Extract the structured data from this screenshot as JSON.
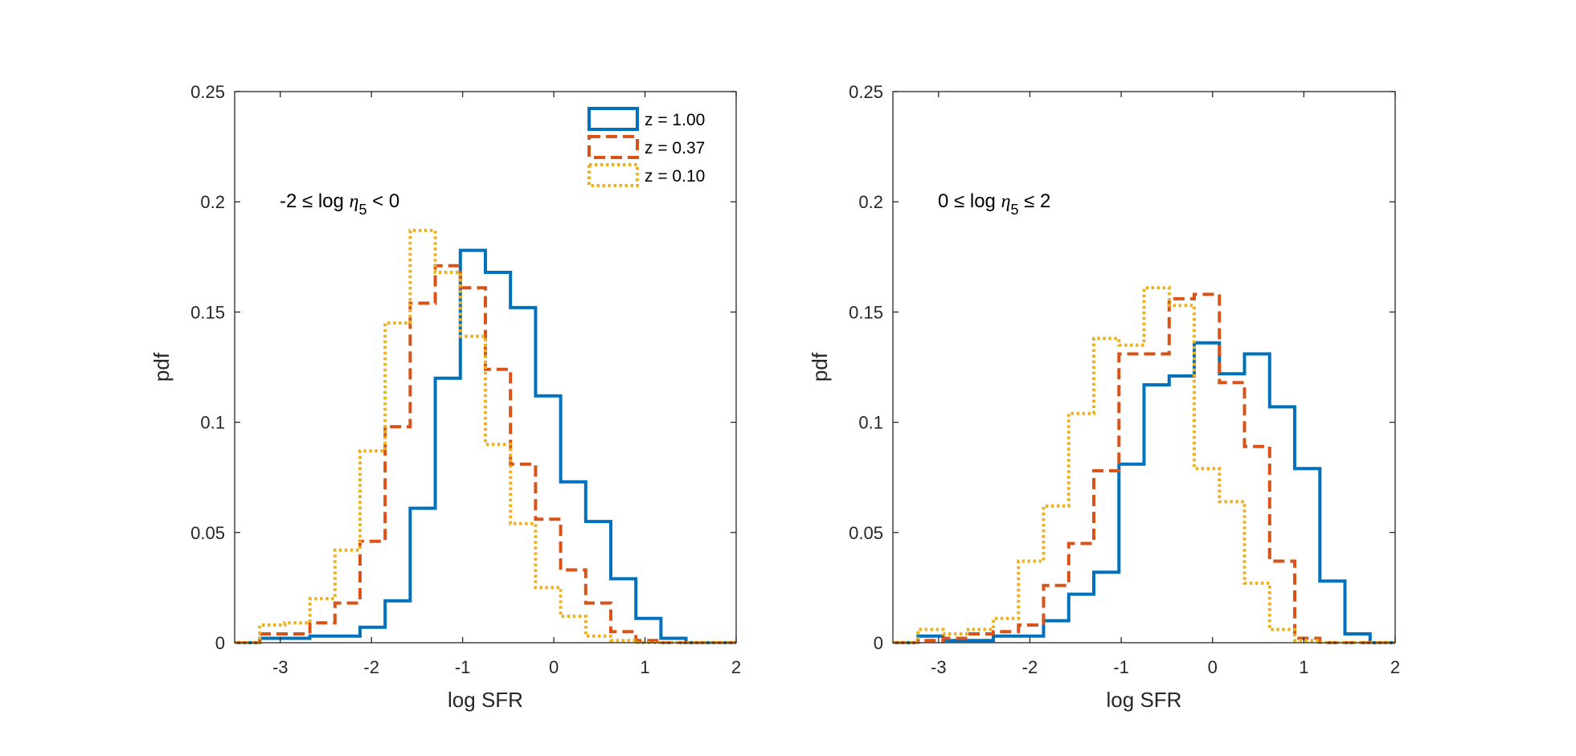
{
  "chart_data": [
    {
      "type": "histogram",
      "xlabel": "log SFR",
      "ylabel": "pdf",
      "xlim": [
        -3.5,
        2
      ],
      "ylim": [
        0,
        0.25
      ],
      "xticks": [
        -3,
        -2,
        -1,
        0,
        1,
        2
      ],
      "yticks": [
        0,
        0.05,
        0.1,
        0.15,
        0.2,
        0.25
      ],
      "xtick_labels": [
        "-3",
        "-2",
        "-1",
        "0",
        "1",
        "2"
      ],
      "ytick_labels": [
        "0",
        "0.05",
        "0.1",
        "0.15",
        "0.2",
        "0.25"
      ],
      "annotation": {
        "text": "-2 ≤ log ",
        "symbol": "η",
        "subscript": "5",
        "suffix": " < 0"
      },
      "legend": {
        "position": "top-right"
      },
      "series": [
        {
          "name": "z = 1.00",
          "color": "#0072BD",
          "style": "solid",
          "bins": [
            -3.5,
            -3.225,
            -2.95,
            -2.675,
            -2.4,
            -2.125,
            -1.85,
            -1.575,
            -1.3,
            -1.025,
            -0.75,
            -0.475,
            -0.2,
            0.075,
            0.35,
            0.625,
            0.9,
            1.175,
            1.45,
            1.725,
            2.0
          ],
          "values": [
            0,
            0.002,
            0.002,
            0.003,
            0.003,
            0.007,
            0.019,
            0.061,
            0.12,
            0.178,
            0.168,
            0.152,
            0.112,
            0.073,
            0.055,
            0.029,
            0.011,
            0.002,
            0,
            0
          ]
        },
        {
          "name": "z = 0.37",
          "color": "#D95319",
          "style": "dashed",
          "bins": [
            -3.5,
            -3.225,
            -2.95,
            -2.675,
            -2.4,
            -2.125,
            -1.85,
            -1.575,
            -1.3,
            -1.025,
            -0.75,
            -0.475,
            -0.2,
            0.075,
            0.35,
            0.625,
            0.9,
            1.175,
            1.45,
            1.725,
            2.0
          ],
          "values": [
            0,
            0.004,
            0.004,
            0.009,
            0.018,
            0.046,
            0.098,
            0.154,
            0.171,
            0.161,
            0.124,
            0.081,
            0.056,
            0.033,
            0.018,
            0.005,
            0.001,
            0,
            0,
            0
          ]
        },
        {
          "name": "z = 0.10",
          "color": "#EDB120",
          "style": "dotted",
          "bins": [
            -3.5,
            -3.225,
            -2.95,
            -2.675,
            -2.4,
            -2.125,
            -1.85,
            -1.575,
            -1.3,
            -1.025,
            -0.75,
            -0.475,
            -0.2,
            0.075,
            0.35,
            0.625,
            0.9,
            1.175,
            1.45,
            1.725,
            2.0
          ],
          "values": [
            0,
            0.008,
            0.009,
            0.02,
            0.042,
            0.087,
            0.145,
            0.187,
            0.168,
            0.139,
            0.09,
            0.054,
            0.025,
            0.012,
            0.003,
            0.001,
            0,
            0,
            0,
            0
          ]
        }
      ]
    },
    {
      "type": "histogram",
      "xlabel": "log SFR",
      "ylabel": "pdf",
      "xlim": [
        -3.5,
        2
      ],
      "ylim": [
        0,
        0.25
      ],
      "xticks": [
        -3,
        -2,
        -1,
        0,
        1,
        2
      ],
      "yticks": [
        0,
        0.05,
        0.1,
        0.15,
        0.2,
        0.25
      ],
      "xtick_labels": [
        "-3",
        "-2",
        "-1",
        "0",
        "1",
        "2"
      ],
      "ytick_labels": [
        "0",
        "0.05",
        "0.1",
        "0.15",
        "0.2",
        "0.25"
      ],
      "annotation": {
        "text": "0 ≤ log ",
        "symbol": "η",
        "subscript": "5",
        "suffix": " ≤ 2"
      },
      "series": [
        {
          "name": "z = 1.00",
          "color": "#0072BD",
          "style": "solid",
          "bins": [
            -3.5,
            -3.225,
            -2.95,
            -2.675,
            -2.4,
            -2.125,
            -1.85,
            -1.575,
            -1.3,
            -1.025,
            -0.75,
            -0.475,
            -0.2,
            0.075,
            0.35,
            0.625,
            0.9,
            1.175,
            1.45,
            1.725,
            2.0
          ],
          "values": [
            0,
            0.003,
            0.001,
            0.001,
            0.003,
            0.003,
            0.01,
            0.022,
            0.032,
            0.081,
            0.117,
            0.121,
            0.136,
            0.122,
            0.131,
            0.107,
            0.079,
            0.028,
            0.004,
            0
          ]
        },
        {
          "name": "z = 0.37",
          "color": "#D95319",
          "style": "dashed",
          "bins": [
            -3.5,
            -3.225,
            -2.95,
            -2.675,
            -2.4,
            -2.125,
            -1.85,
            -1.575,
            -1.3,
            -1.025,
            -0.75,
            -0.475,
            -0.2,
            0.075,
            0.35,
            0.625,
            0.9,
            1.175,
            1.45,
            1.725,
            2.0
          ],
          "values": [
            0,
            0.001,
            0.002,
            0.004,
            0.005,
            0.008,
            0.026,
            0.045,
            0.078,
            0.131,
            0.131,
            0.156,
            0.158,
            0.118,
            0.089,
            0.037,
            0.002,
            0,
            0,
            0
          ]
        },
        {
          "name": "z = 0.10",
          "color": "#EDB120",
          "style": "dotted",
          "bins": [
            -3.5,
            -3.225,
            -2.95,
            -2.675,
            -2.4,
            -2.125,
            -1.85,
            -1.575,
            -1.3,
            -1.025,
            -0.75,
            -0.475,
            -0.2,
            0.075,
            0.35,
            0.625,
            0.9,
            1.175,
            1.45,
            1.725,
            2.0
          ],
          "values": [
            0,
            0.006,
            0.004,
            0.006,
            0.011,
            0.037,
            0.062,
            0.104,
            0.138,
            0.135,
            0.161,
            0.153,
            0.079,
            0.064,
            0.027,
            0.006,
            0.001,
            0,
            0,
            0
          ]
        }
      ]
    }
  ]
}
